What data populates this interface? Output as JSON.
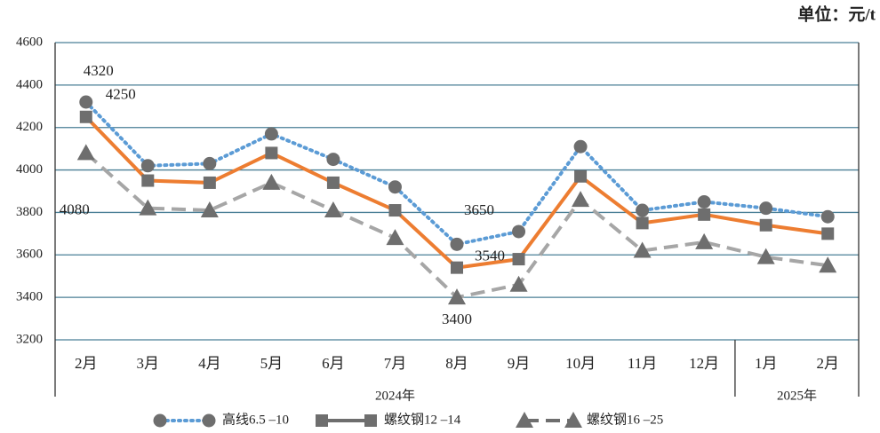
{
  "chart_data": {
    "type": "line",
    "unit": "单位：元/t",
    "categories": [
      "2月",
      "3月",
      "4月",
      "5月",
      "6月",
      "7月",
      "8月",
      "9月",
      "10月",
      "11月",
      "12月",
      "1月",
      "2月"
    ],
    "groups": [
      {
        "label": "2024年",
        "count": 11
      },
      {
        "label": "2025年",
        "count": 2
      }
    ],
    "series": [
      {
        "name": "高线6.5 –10",
        "color": "#5b9bd5",
        "style": "dotted",
        "marker": "circle",
        "values": [
          4320,
          4020,
          4030,
          4170,
          4050,
          3920,
          3650,
          3710,
          4110,
          3810,
          3850,
          3820,
          3780
        ],
        "label_points": [
          0,
          6
        ]
      },
      {
        "name": "螺纹钢12 –14",
        "color": "#ed7d31",
        "style": "solid",
        "marker": "square",
        "values": [
          4250,
          3950,
          3940,
          4080,
          3940,
          3810,
          3540,
          3580,
          3970,
          3750,
          3790,
          3740,
          3700
        ],
        "label_points": [
          0,
          6
        ]
      },
      {
        "name": "螺纹钢16 –25",
        "color": "#a6a6a6",
        "style": "dashed",
        "marker": "triangle",
        "values": [
          4080,
          3820,
          3810,
          3940,
          3810,
          3680,
          3400,
          3460,
          3860,
          3620,
          3660,
          3590,
          3550
        ],
        "label_points": [
          0,
          6
        ]
      }
    ],
    "marker_color": "#6e6e6e",
    "ylim": [
      3200,
      4600
    ],
    "yticks": [
      3200,
      3400,
      3600,
      3800,
      4000,
      4200,
      4400,
      4600
    ],
    "grid": true
  }
}
